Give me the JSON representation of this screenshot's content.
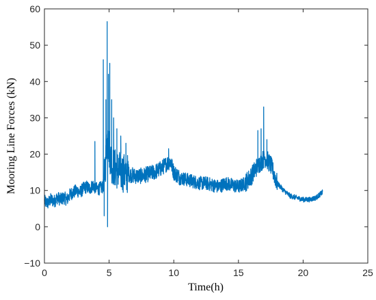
{
  "chart_data": {
    "type": "line",
    "title": "",
    "xlabel": "Time(h)",
    "ylabel": "Mooring Line Forces  (kN)",
    "xlim": [
      0,
      25
    ],
    "ylim": [
      -10,
      60
    ],
    "xticks": [
      0,
      5,
      10,
      15,
      20,
      25
    ],
    "yticks": [
      -10,
      0,
      10,
      20,
      30,
      40,
      50,
      60
    ],
    "xtick_labels": [
      "0",
      "5",
      "10",
      "15",
      "20",
      "25"
    ],
    "ytick_labels": [
      "−10",
      "0",
      "10",
      "20",
      "30",
      "40",
      "50",
      "60"
    ],
    "grid": false,
    "legend": "none",
    "line_color": "#0072BD",
    "series": [
      {
        "x": [
          0,
          0.25,
          0.5,
          0.75,
          1.0,
          1.25,
          1.5,
          1.75,
          2.0,
          2.25,
          2.5,
          2.75,
          3.0,
          3.25,
          3.5,
          3.75,
          4.0,
          4.25,
          4.5,
          4.6,
          4.75,
          4.85,
          5.0,
          5.15,
          5.25,
          5.5,
          5.75,
          6.0,
          6.5,
          7.0,
          7.5,
          8.0,
          8.5,
          9.0,
          9.5,
          9.75,
          10.0,
          10.5,
          11.0,
          11.5,
          12.0,
          12.5,
          13.0,
          13.5,
          14.0,
          14.5,
          15.0,
          15.5,
          16.0,
          16.5,
          16.8,
          17.0,
          17.2,
          17.5,
          17.8,
          18.0,
          18.5,
          19.0,
          19.5,
          20.0,
          20.5,
          21.0,
          21.5
        ],
        "y": [
          7,
          6.5,
          7.5,
          7,
          8,
          7.5,
          8,
          7.5,
          9,
          9.5,
          10,
          9.5,
          10.5,
          11,
          10.5,
          11.5,
          10.5,
          10.5,
          11,
          11.5,
          19,
          25,
          22,
          18,
          17,
          16,
          15.5,
          15,
          14.5,
          14,
          14,
          14.5,
          15,
          16,
          17.5,
          18,
          15,
          13.5,
          13,
          12.5,
          12,
          12,
          11.5,
          11,
          12,
          11.5,
          11,
          12,
          14,
          17,
          18,
          19,
          18.5,
          17,
          14,
          12,
          10,
          8.5,
          8,
          7.5,
          7.5,
          8,
          9.5
        ]
      }
    ]
  }
}
